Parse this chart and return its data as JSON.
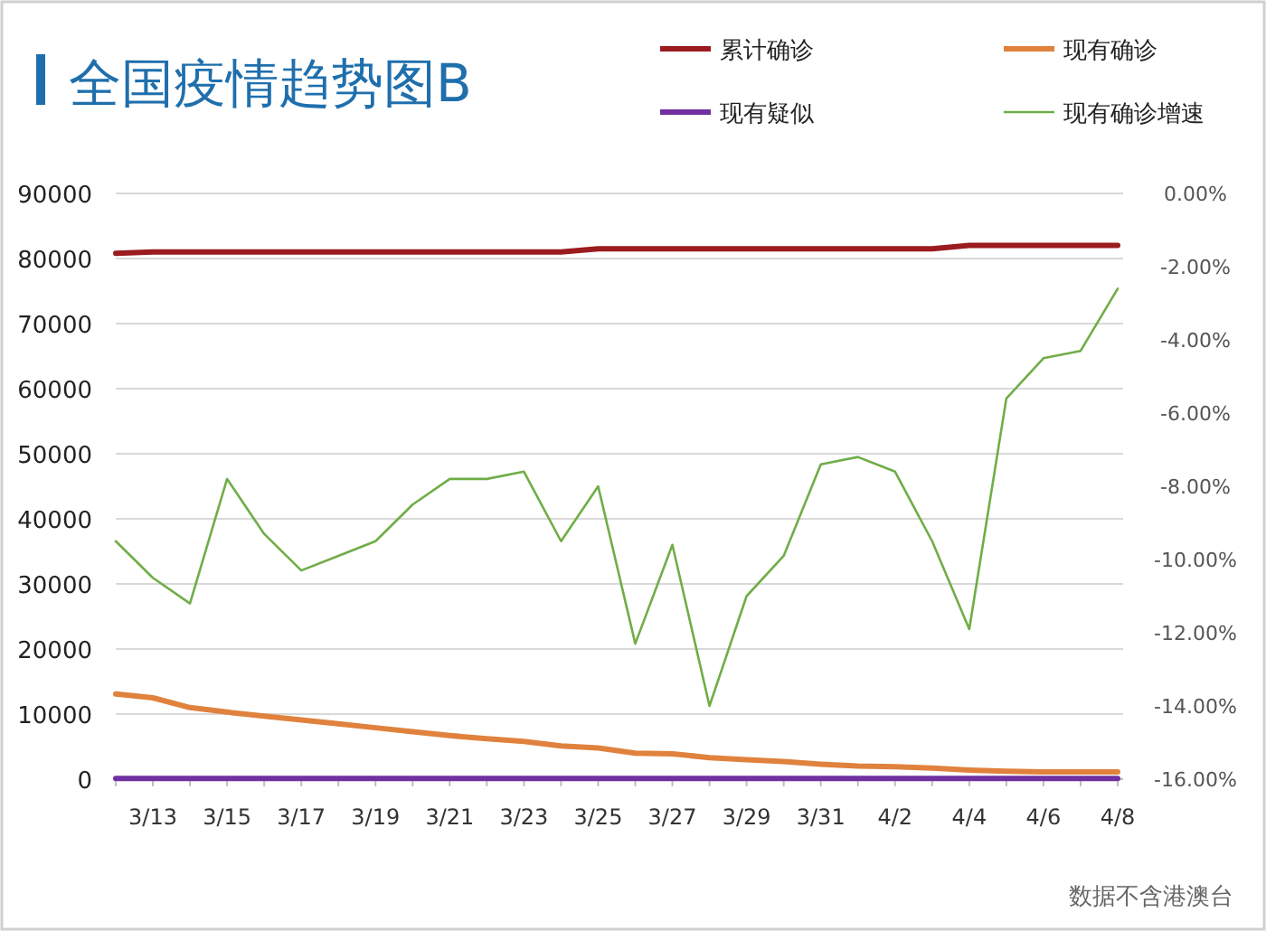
{
  "chart_data": {
    "type": "line",
    "title": "全国疫情趋势图B",
    "categories": [
      null,
      "3/13",
      null,
      "3/15",
      null,
      "3/17",
      null,
      "3/19",
      null,
      "3/21",
      null,
      "3/23",
      null,
      "3/25",
      null,
      "3/27",
      null,
      "3/29",
      null,
      "3/31",
      null,
      "4/2",
      null,
      "4/4",
      null,
      "4/6",
      null,
      "4/8"
    ],
    "series": [
      {
        "name": "累计确诊",
        "color": "#9b1b1e",
        "values": [
          80800,
          81000,
          81000,
          81000,
          81000,
          81000,
          81000,
          81000,
          81000,
          81000,
          81000,
          81000,
          81000,
          81500,
          81500,
          81500,
          81500,
          81500,
          81500,
          81500,
          81500,
          81500,
          81500,
          82000,
          82000,
          82000,
          82000,
          82000
        ]
      },
      {
        "name": "现有确诊",
        "color": "#e0823d",
        "values": [
          13100,
          12500,
          11000,
          10300,
          9700,
          9100,
          8500,
          7900,
          7300,
          6700,
          6200,
          5800,
          5100,
          4800,
          4000,
          3900,
          3300,
          3000,
          2700,
          2300,
          2000,
          1900,
          1700,
          1400,
          1200,
          1100,
          1100,
          1100
        ]
      },
      {
        "name": "现有疑似",
        "color": "#7030a0",
        "values": [
          100,
          100,
          100,
          100,
          100,
          100,
          100,
          100,
          100,
          100,
          100,
          100,
          100,
          100,
          100,
          100,
          100,
          100,
          100,
          100,
          100,
          100,
          100,
          100,
          100,
          100,
          100,
          100
        ]
      },
      {
        "name": "现有确诊增速",
        "color": "#70ad47",
        "axis": "y2",
        "values": [
          -9.5,
          -10.5,
          -11.2,
          -7.8,
          -9.3,
          -10.3,
          -9.9,
          -9.5,
          -8.5,
          -7.8,
          -7.8,
          -7.6,
          -9.5,
          -8.0,
          -12.3,
          -9.6,
          -14.0,
          -11.0,
          -9.9,
          -7.4,
          -7.2,
          -7.6,
          -9.5,
          -11.9,
          -5.6,
          -4.5,
          -4.3,
          -2.6
        ]
      }
    ],
    "ylim": [
      0,
      90000
    ],
    "yticks": [
      0,
      10000,
      20000,
      30000,
      40000,
      50000,
      60000,
      70000,
      80000,
      90000
    ],
    "y2lim": [
      -16,
      0
    ],
    "y2ticks": [
      {
        "value": -16,
        "label": "-16.00%"
      },
      {
        "value": -14,
        "label": "-14.00%"
      },
      {
        "value": -12,
        "label": "-12.00%"
      },
      {
        "value": -10,
        "label": "-10.00%"
      },
      {
        "value": -8,
        "label": "-8.00%"
      },
      {
        "value": -6,
        "label": "-6.00%"
      },
      {
        "value": -4,
        "label": "-4.00%"
      },
      {
        "value": -2,
        "label": "-2.00%"
      },
      {
        "value": 0,
        "label": "0.00%"
      }
    ],
    "grid": "y",
    "legend": "top",
    "marker": "none",
    "line_style": "solid",
    "annotations": [
      "数据不含港澳台"
    ]
  }
}
